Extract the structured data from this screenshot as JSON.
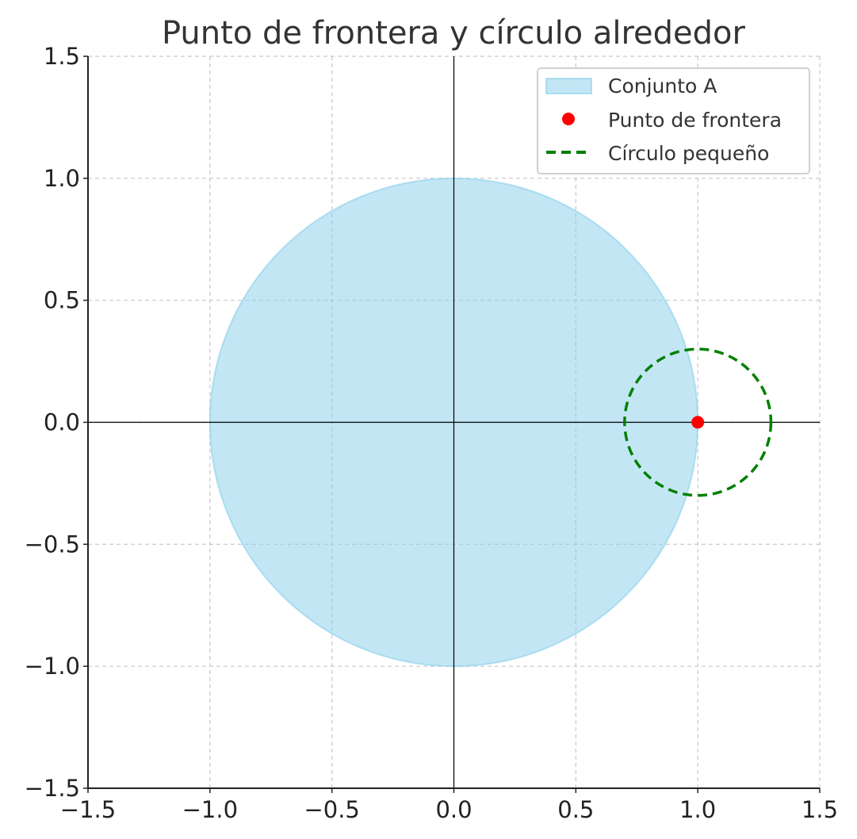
{
  "chart_data": {
    "type": "scatter",
    "title": "Punto de frontera y círculo alrededor",
    "xlabel": "",
    "ylabel": "",
    "xlim": [
      -1.5,
      1.5
    ],
    "ylim": [
      -1.5,
      1.5
    ],
    "xticks": [
      "−1.5",
      "−1.0",
      "−0.5",
      "0.0",
      "0.5",
      "1.0",
      "1.5"
    ],
    "yticks": [
      "−1.5",
      "−1.0",
      "−0.5",
      "0.0",
      "0.5",
      "1.0",
      "1.5"
    ],
    "tick_values": [
      -1.5,
      -1.0,
      -0.5,
      0.0,
      0.5,
      1.0,
      1.5
    ],
    "grid": true,
    "legend_position": "top-right",
    "series": [
      {
        "name": "Conjunto A",
        "kind": "filled-circle",
        "center": [
          0,
          0
        ],
        "radius": 1.0,
        "color": "#87ceeb",
        "alpha": 0.5
      },
      {
        "name": "Punto de frontera",
        "kind": "point",
        "x": [
          1.0
        ],
        "y": [
          0.0
        ],
        "color": "#ff0000"
      },
      {
        "name": "Círculo pequeño",
        "kind": "dashed-circle",
        "center": [
          1.0,
          0.0
        ],
        "radius": 0.3,
        "color": "#008000"
      }
    ],
    "axis_lines": {
      "x": 0,
      "y": 0,
      "color": "#000000"
    }
  }
}
